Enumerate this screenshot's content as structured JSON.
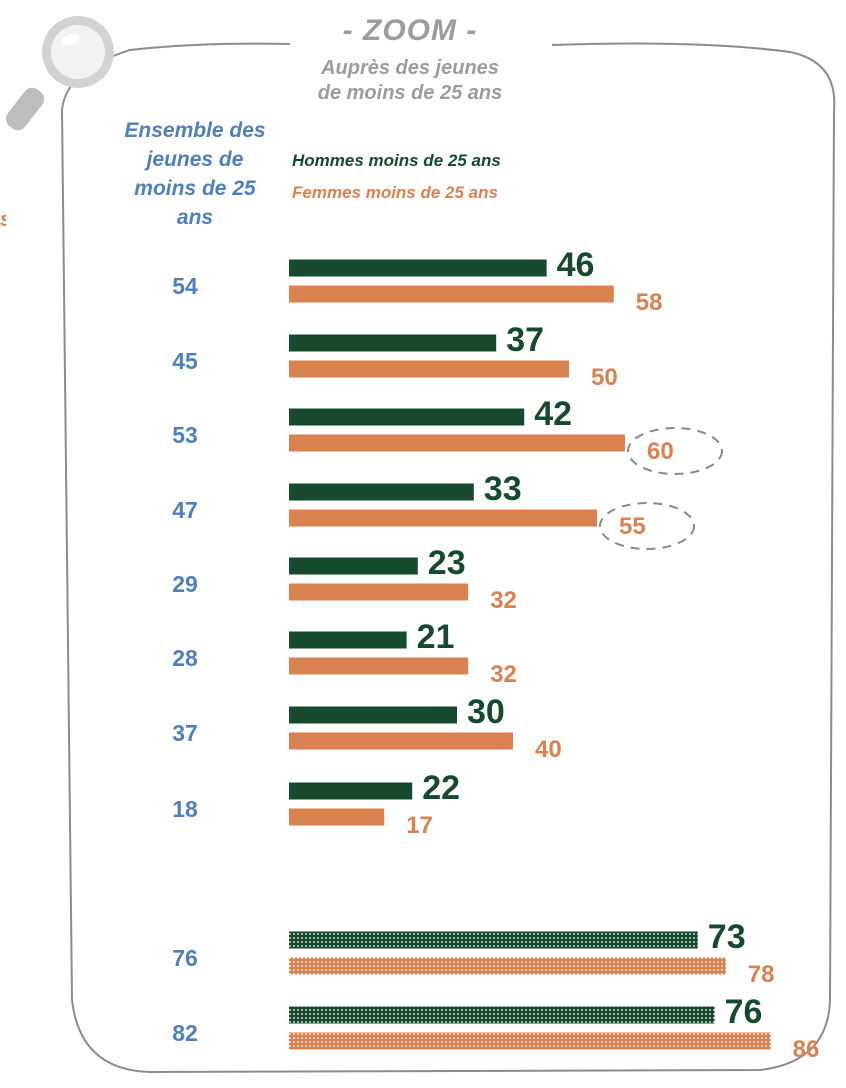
{
  "header": {
    "zoom_title": "- ZOOM -",
    "zoom_subtitle_1": "Auprès des jeunes",
    "zoom_subtitle_2": "de moins de 25 ans"
  },
  "ensemble_label": [
    "Ensemble des",
    "jeunes de",
    "moins de 25",
    "ans"
  ],
  "legend": {
    "men": "Hommes moins de 25 ans",
    "women": "Femmes moins de 25 ans"
  },
  "stray_text": "s",
  "colors": {
    "men": "#164a2c",
    "women": "#d9814f",
    "ensemble": "#4f7fbd",
    "grey": "#9c9c9c"
  },
  "chart_data": {
    "type": "bar",
    "orientation": "horizontal",
    "series": [
      {
        "name": "Ensemble des jeunes de moins de 25 ans",
        "values": [
          54,
          45,
          53,
          47,
          29,
          28,
          37,
          18,
          76,
          82
        ]
      },
      {
        "name": "Hommes moins de 25 ans",
        "values": [
          46,
          37,
          42,
          33,
          23,
          21,
          30,
          22,
          73,
          76
        ]
      },
      {
        "name": "Femmes moins de 25 ans",
        "values": [
          58,
          50,
          60,
          55,
          32,
          32,
          40,
          17,
          78,
          86
        ]
      }
    ],
    "patterned_rows": [
      8,
      9
    ],
    "circled_women_values": [
      60,
      55
    ],
    "axis_visible": false,
    "grid": false
  }
}
